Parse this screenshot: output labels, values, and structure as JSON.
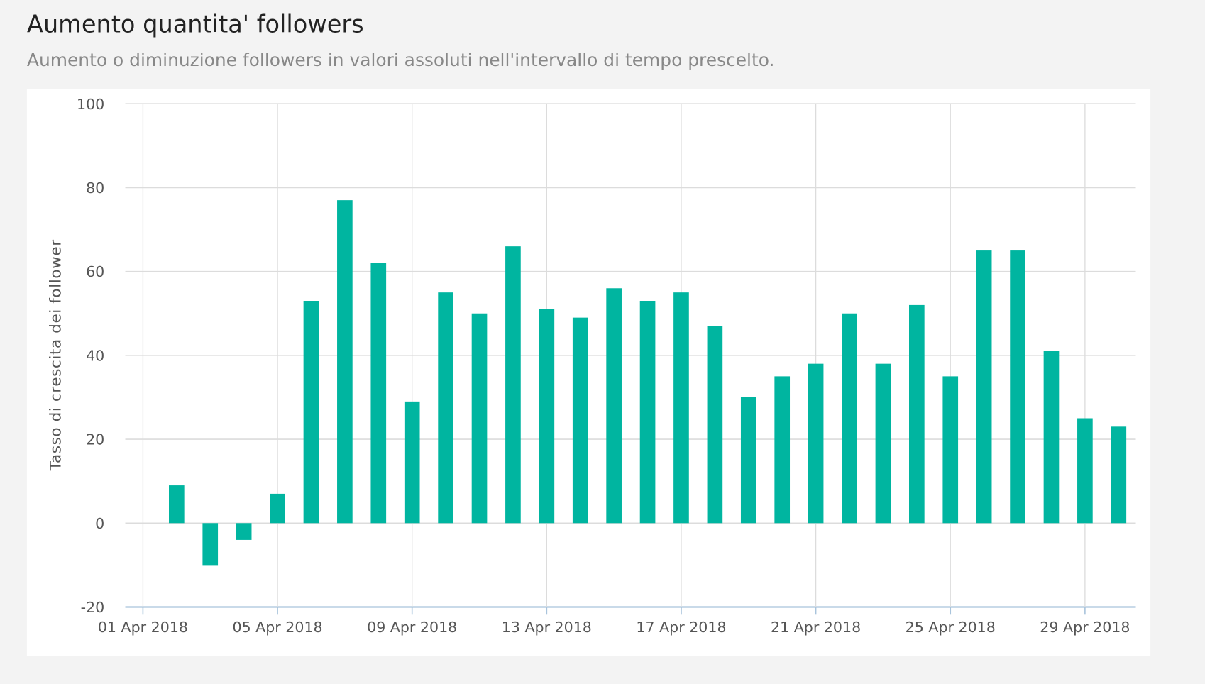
{
  "header": {
    "title": "Aumento quantita' followers",
    "subtitle": "Aumento o diminuzione followers in valori assoluti nell'intervallo di tempo prescelto."
  },
  "chart_data": {
    "type": "bar",
    "title": "",
    "xlabel": "",
    "ylabel": "Tasso di crescita dei follower",
    "ylim": [
      -20,
      100
    ],
    "yticks": [
      -20,
      0,
      20,
      40,
      60,
      80,
      100
    ],
    "xticks": [
      "01 Apr 2018",
      "05 Apr 2018",
      "09 Apr 2018",
      "13 Apr 2018",
      "17 Apr 2018",
      "21 Apr 2018",
      "25 Apr 2018",
      "29 Apr 2018"
    ],
    "xlim": [
      "2018-04-01",
      "2018-04-30"
    ],
    "grid": true,
    "color": "#00b5a0",
    "categories": [
      "2018-04-02",
      "2018-04-03",
      "2018-04-04",
      "2018-04-05",
      "2018-04-06",
      "2018-04-07",
      "2018-04-08",
      "2018-04-09",
      "2018-04-10",
      "2018-04-11",
      "2018-04-12",
      "2018-04-13",
      "2018-04-14",
      "2018-04-15",
      "2018-04-16",
      "2018-04-17",
      "2018-04-18",
      "2018-04-19",
      "2018-04-20",
      "2018-04-21",
      "2018-04-22",
      "2018-04-23",
      "2018-04-24",
      "2018-04-25",
      "2018-04-26",
      "2018-04-27",
      "2018-04-28",
      "2018-04-29",
      "2018-04-30"
    ],
    "values": [
      9,
      -10,
      -4,
      7,
      53,
      77,
      62,
      29,
      55,
      50,
      66,
      51,
      49,
      56,
      53,
      55,
      47,
      30,
      35,
      38,
      50,
      38,
      52,
      35,
      65,
      65,
      41,
      25,
      23
    ]
  }
}
